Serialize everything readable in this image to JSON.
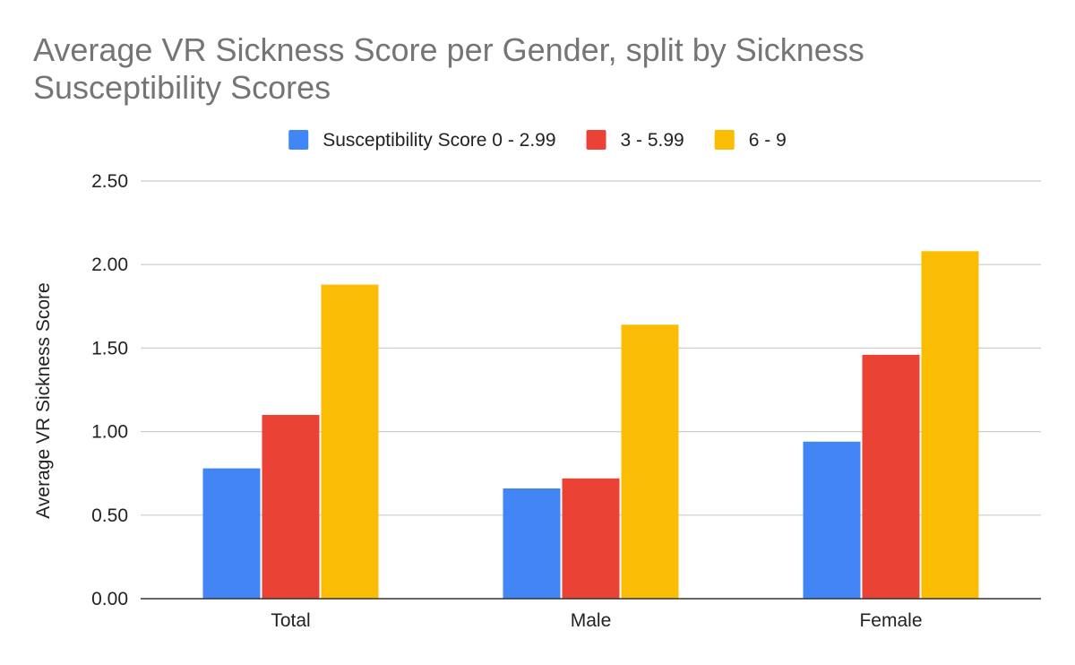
{
  "chart_data": {
    "type": "bar",
    "title_lines": [
      "Average VR Sickness Score per Gender, split by Sickness",
      "Susceptibility Scores"
    ],
    "ylabel": "Average VR Sickness Score",
    "xlabel": "",
    "categories": [
      "Total",
      "Male",
      "Female"
    ],
    "ylim": [
      0,
      2.5
    ],
    "yticks": [
      "0.00",
      "0.50",
      "1.00",
      "1.50",
      "2.00",
      "2.50"
    ],
    "ytick_values": [
      0,
      0.5,
      1.0,
      1.5,
      2.0,
      2.5
    ],
    "grid": true,
    "legend_position": "top",
    "series": [
      {
        "name": "Susceptibility Score 0 - 2.99",
        "color": "#4285F4",
        "values": [
          0.78,
          0.66,
          0.94
        ]
      },
      {
        "name": "3 - 5.99",
        "color": "#EA4335",
        "values": [
          1.1,
          0.72,
          1.46
        ]
      },
      {
        "name": "6 - 9",
        "color": "#FBBC04",
        "values": [
          1.88,
          1.64,
          2.08
        ]
      }
    ]
  }
}
